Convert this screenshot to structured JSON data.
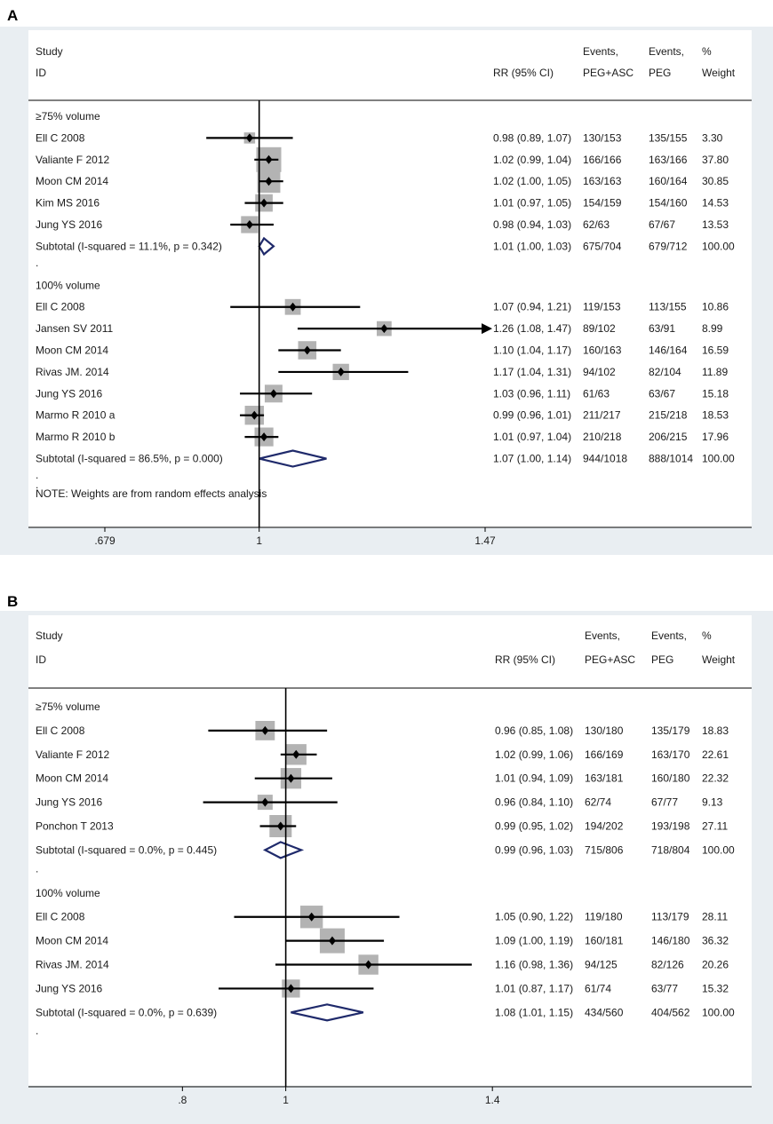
{
  "chart_data": [
    {
      "type": "forest",
      "panel_label": "A",
      "header": {
        "study": "Study",
        "id": "ID",
        "effect": "RR (95% CI)",
        "events_line1": "Events,",
        "events_exp": "PEG+ASC",
        "events2_line1": "Events,",
        "events_ctrl": "PEG",
        "weight_line1": "%",
        "weight_line2": "Weight"
      },
      "xaxis": {
        "min": 0.679,
        "max": 1.47,
        "ticks": [
          ".679",
          "1",
          "1.47"
        ],
        "tick_values": [
          0.679,
          1,
          1.47
        ]
      },
      "groups": [
        {
          "label": "≥75% volume",
          "studies": [
            {
              "name": "Ell C 2008",
              "rr": 0.98,
              "lo": 0.89,
              "hi": 1.07,
              "ci_text": "0.98 (0.89, 1.07)",
              "exp": "130/153",
              "ctrl": "135/155",
              "weight": "3.30"
            },
            {
              "name": "Valiante F 2012",
              "rr": 1.02,
              "lo": 0.99,
              "hi": 1.04,
              "ci_text": "1.02 (0.99, 1.04)",
              "exp": "166/166",
              "ctrl": "163/166",
              "weight": "37.80"
            },
            {
              "name": "Moon CM 2014",
              "rr": 1.02,
              "lo": 1.0,
              "hi": 1.05,
              "ci_text": "1.02 (1.00, 1.05)",
              "exp": "163/163",
              "ctrl": "160/164",
              "weight": "30.85"
            },
            {
              "name": "Kim MS 2016",
              "rr": 1.01,
              "lo": 0.97,
              "hi": 1.05,
              "ci_text": "1.01 (0.97, 1.05)",
              "exp": "154/159",
              "ctrl": "154/160",
              "weight": "14.53"
            },
            {
              "name": "Jung YS 2016",
              "rr": 0.98,
              "lo": 0.94,
              "hi": 1.03,
              "ci_text": "0.98 (0.94, 1.03)",
              "exp": "62/63",
              "ctrl": "67/67",
              "weight": "13.53"
            }
          ],
          "subtotal": {
            "label": "Subtotal  (I-squared = 11.1%, p = 0.342)",
            "rr": 1.01,
            "lo": 1.0,
            "hi": 1.03,
            "ci_text": "1.01 (1.00, 1.03)",
            "exp": "675/704",
            "ctrl": "679/712",
            "weight": "100.00"
          }
        },
        {
          "label": "100% volume",
          "studies": [
            {
              "name": "Ell C 2008",
              "rr": 1.07,
              "lo": 0.94,
              "hi": 1.21,
              "ci_text": "1.07 (0.94, 1.21)",
              "exp": "119/153",
              "ctrl": "113/155",
              "weight": "10.86"
            },
            {
              "name": "Jansen SV 2011",
              "rr": 1.26,
              "lo": 1.08,
              "hi": 1.47,
              "ci_text": "1.26 (1.08, 1.47)",
              "exp": "89/102",
              "ctrl": "63/91",
              "weight": "8.99",
              "arrow": true
            },
            {
              "name": "Moon CM 2014",
              "rr": 1.1,
              "lo": 1.04,
              "hi": 1.17,
              "ci_text": "1.10 (1.04, 1.17)",
              "exp": "160/163",
              "ctrl": "146/164",
              "weight": "16.59"
            },
            {
              "name": "Rivas JM. 2014",
              "rr": 1.17,
              "lo": 1.04,
              "hi": 1.31,
              "ci_text": "1.17 (1.04, 1.31)",
              "exp": "94/102",
              "ctrl": "82/104",
              "weight": "11.89"
            },
            {
              "name": "Jung YS 2016",
              "rr": 1.03,
              "lo": 0.96,
              "hi": 1.11,
              "ci_text": "1.03 (0.96, 1.11)",
              "exp": "61/63",
              "ctrl": "63/67",
              "weight": "15.18"
            },
            {
              "name": "Marmo R 2010 a",
              "rr": 0.99,
              "lo": 0.96,
              "hi": 1.01,
              "ci_text": "0.99 (0.96, 1.01)",
              "exp": "211/217",
              "ctrl": "215/218",
              "weight": "18.53"
            },
            {
              "name": "Marmo R 2010 b",
              "rr": 1.01,
              "lo": 0.97,
              "hi": 1.04,
              "ci_text": "1.01 (0.97, 1.04)",
              "exp": "210/218",
              "ctrl": "206/215",
              "weight": "17.96"
            }
          ],
          "subtotal": {
            "label": "Subtotal  (I-squared = 86.5%, p = 0.000)",
            "rr": 1.07,
            "lo": 1.0,
            "hi": 1.14,
            "ci_text": "1.07 (1.00, 1.14)",
            "exp": "944/1018",
            "ctrl": "888/1014",
            "weight": "100.00"
          }
        }
      ],
      "separator": ".",
      "note": "NOTE: Weights are from random effects analysis"
    },
    {
      "type": "forest",
      "panel_label": "B",
      "header": {
        "study": "Study",
        "id": "ID",
        "effect": "RR (95% CI)",
        "events_line1": "Events,",
        "events_exp": "PEG+ASC",
        "events2_line1": "Events,",
        "events_ctrl": "PEG",
        "weight_line1": "%",
        "weight_line2": "Weight"
      },
      "xaxis": {
        "min": 0.71,
        "max": 1.41,
        "ticks": [
          ".8",
          "1",
          "1.4"
        ],
        "tick_values": [
          0.8,
          1,
          1.4
        ]
      },
      "groups": [
        {
          "label": "≥75% volume",
          "studies": [
            {
              "name": "Ell C 2008",
              "rr": 0.96,
              "lo": 0.85,
              "hi": 1.08,
              "ci_text": "0.96 (0.85, 1.08)",
              "exp": "130/180",
              "ctrl": "135/179",
              "weight": "18.83"
            },
            {
              "name": "Valiante F 2012",
              "rr": 1.02,
              "lo": 0.99,
              "hi": 1.06,
              "ci_text": "1.02 (0.99, 1.06)",
              "exp": "166/169",
              "ctrl": "163/170",
              "weight": "22.61"
            },
            {
              "name": "Moon CM 2014",
              "rr": 1.01,
              "lo": 0.94,
              "hi": 1.09,
              "ci_text": "1.01 (0.94, 1.09)",
              "exp": "163/181",
              "ctrl": "160/180",
              "weight": "22.32"
            },
            {
              "name": "Jung YS 2016",
              "rr": 0.96,
              "lo": 0.84,
              "hi": 1.1,
              "ci_text": "0.96 (0.84, 1.10)",
              "exp": "62/74",
              "ctrl": "67/77",
              "weight": "9.13"
            },
            {
              "name": "Ponchon T 2013",
              "rr": 0.99,
              "lo": 0.95,
              "hi": 1.02,
              "ci_text": "0.99 (0.95, 1.02)",
              "exp": "194/202",
              "ctrl": "193/198",
              "weight": "27.11"
            }
          ],
          "subtotal": {
            "label": "Subtotal  (I-squared = 0.0%, p = 0.445)",
            "rr": 0.99,
            "lo": 0.96,
            "hi": 1.03,
            "ci_text": "0.99 (0.96, 1.03)",
            "exp": "715/806",
            "ctrl": "718/804",
            "weight": "100.00"
          }
        },
        {
          "label": "100% volume",
          "studies": [
            {
              "name": "Ell C 2008",
              "rr": 1.05,
              "lo": 0.9,
              "hi": 1.22,
              "ci_text": "1.05 (0.90, 1.22)",
              "exp": "119/180",
              "ctrl": "113/179",
              "weight": "28.11"
            },
            {
              "name": "Moon CM 2014",
              "rr": 1.09,
              "lo": 1.0,
              "hi": 1.19,
              "ci_text": "1.09 (1.00, 1.19)",
              "exp": "160/181",
              "ctrl": "146/180",
              "weight": "36.32"
            },
            {
              "name": "Rivas JM. 2014",
              "rr": 1.16,
              "lo": 0.98,
              "hi": 1.36,
              "ci_text": "1.16 (0.98, 1.36)",
              "exp": "94/125",
              "ctrl": "82/126",
              "weight": "20.26"
            },
            {
              "name": "Jung YS 2016",
              "rr": 1.01,
              "lo": 0.87,
              "hi": 1.17,
              "ci_text": "1.01 (0.87, 1.17)",
              "exp": "61/74",
              "ctrl": "63/77",
              "weight": "15.32"
            }
          ],
          "subtotal": {
            "label": "Subtotal  (I-squared = 0.0%, p = 0.639)",
            "rr": 1.08,
            "lo": 1.01,
            "hi": 1.15,
            "ci_text": "1.08 (1.01, 1.15)",
            "exp": "434/560",
            "ctrl": "404/562",
            "weight": "100.00"
          }
        }
      ],
      "separator": ".",
      "note": ""
    }
  ],
  "colors": {
    "background_frame": "#e9eef2",
    "line": "#000000",
    "weight_box": "#b3b3b3",
    "diamond": "#1f2a6b"
  }
}
